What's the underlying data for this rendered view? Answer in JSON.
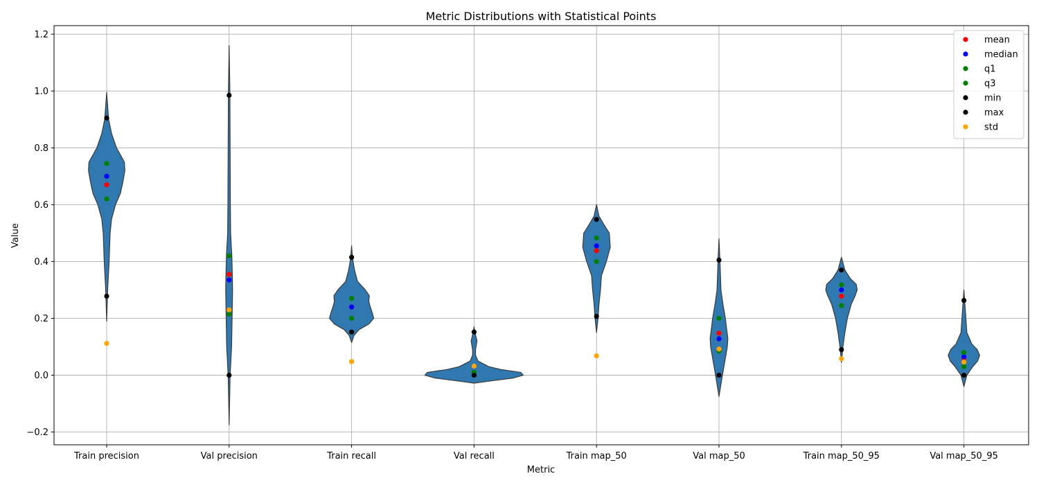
{
  "chart_data": {
    "type": "violin",
    "title": "Metric Distributions with Statistical Points",
    "xlabel": "Metric",
    "ylabel": "Value",
    "ylim": [
      -0.245,
      1.23
    ],
    "yticks": [
      -0.2,
      0.0,
      0.2,
      0.4,
      0.6,
      0.8,
      1.0,
      1.2
    ],
    "ytick_labels": [
      "−0.2",
      "0.0",
      "0.2",
      "0.4",
      "0.6",
      "0.8",
      "1.0",
      "1.2"
    ],
    "grid": true,
    "legend_position": "top-right",
    "violin_color": "#2f78b0",
    "categories": [
      "Train precision",
      "Val precision",
      "Train recall",
      "Val recall",
      "Train map_50",
      "Val map_50",
      "Train map_50_95",
      "Val map_50_95"
    ],
    "violins": [
      {
        "extent": [
          0.19,
          0.995
        ],
        "density": [
          [
            0.19,
            0.0
          ],
          [
            0.3,
            0.02
          ],
          [
            0.4,
            0.05
          ],
          [
            0.5,
            0.07
          ],
          [
            0.55,
            0.1
          ],
          [
            0.6,
            0.18
          ],
          [
            0.64,
            0.28
          ],
          [
            0.68,
            0.33
          ],
          [
            0.72,
            0.37
          ],
          [
            0.75,
            0.36
          ],
          [
            0.8,
            0.2
          ],
          [
            0.85,
            0.1
          ],
          [
            0.9,
            0.04
          ],
          [
            0.995,
            0.0
          ]
        ]
      },
      {
        "extent": [
          -0.175,
          1.16
        ],
        "density": [
          [
            -0.175,
            0.0
          ],
          [
            0.0,
            0.02
          ],
          [
            0.1,
            0.05
          ],
          [
            0.2,
            0.06
          ],
          [
            0.3,
            0.07
          ],
          [
            0.35,
            0.065
          ],
          [
            0.42,
            0.055
          ],
          [
            0.5,
            0.03
          ],
          [
            0.6,
            0.025
          ],
          [
            0.8,
            0.02
          ],
          [
            1.0,
            0.015
          ],
          [
            1.16,
            0.0
          ]
        ]
      },
      {
        "extent": [
          0.115,
          0.455
        ],
        "density": [
          [
            0.115,
            0.0
          ],
          [
            0.14,
            0.05
          ],
          [
            0.16,
            0.15
          ],
          [
            0.18,
            0.35
          ],
          [
            0.2,
            0.45
          ],
          [
            0.22,
            0.42
          ],
          [
            0.24,
            0.38
          ],
          [
            0.26,
            0.35
          ],
          [
            0.28,
            0.36
          ],
          [
            0.3,
            0.28
          ],
          [
            0.33,
            0.12
          ],
          [
            0.37,
            0.06
          ],
          [
            0.41,
            0.02
          ],
          [
            0.455,
            0.0
          ]
        ]
      },
      {
        "extent": [
          -0.028,
          0.17
        ],
        "density": [
          [
            -0.028,
            0.0
          ],
          [
            -0.02,
            0.35
          ],
          [
            -0.01,
            0.8
          ],
          [
            0.0,
            1.0
          ],
          [
            0.01,
            0.95
          ],
          [
            0.02,
            0.55
          ],
          [
            0.03,
            0.3
          ],
          [
            0.05,
            0.08
          ],
          [
            0.07,
            0.03
          ],
          [
            0.09,
            0.03
          ],
          [
            0.12,
            0.06
          ],
          [
            0.15,
            0.02
          ],
          [
            0.17,
            0.0
          ]
        ]
      },
      {
        "extent": [
          0.15,
          0.6
        ],
        "density": [
          [
            0.15,
            0.0
          ],
          [
            0.2,
            0.03
          ],
          [
            0.25,
            0.05
          ],
          [
            0.3,
            0.08
          ],
          [
            0.35,
            0.1
          ],
          [
            0.4,
            0.2
          ],
          [
            0.45,
            0.28
          ],
          [
            0.5,
            0.26
          ],
          [
            0.53,
            0.15
          ],
          [
            0.56,
            0.05
          ],
          [
            0.6,
            0.0
          ]
        ]
      },
      {
        "extent": [
          -0.075,
          0.48
        ],
        "density": [
          [
            -0.075,
            0.0
          ],
          [
            0.0,
            0.07
          ],
          [
            0.05,
            0.12
          ],
          [
            0.1,
            0.17
          ],
          [
            0.13,
            0.18
          ],
          [
            0.17,
            0.15
          ],
          [
            0.2,
            0.13
          ],
          [
            0.25,
            0.08
          ],
          [
            0.3,
            0.04
          ],
          [
            0.4,
            0.02
          ],
          [
            0.48,
            0.0
          ]
        ]
      },
      {
        "extent": [
          0.045,
          0.415
        ],
        "density": [
          [
            0.045,
            0.0
          ],
          [
            0.1,
            0.03
          ],
          [
            0.15,
            0.07
          ],
          [
            0.2,
            0.12
          ],
          [
            0.25,
            0.2
          ],
          [
            0.28,
            0.28
          ],
          [
            0.3,
            0.32
          ],
          [
            0.32,
            0.3
          ],
          [
            0.34,
            0.18
          ],
          [
            0.37,
            0.07
          ],
          [
            0.415,
            0.0
          ]
        ]
      },
      {
        "extent": [
          -0.04,
          0.3
        ],
        "density": [
          [
            -0.04,
            0.0
          ],
          [
            0.0,
            0.06
          ],
          [
            0.03,
            0.18
          ],
          [
            0.05,
            0.28
          ],
          [
            0.07,
            0.32
          ],
          [
            0.09,
            0.27
          ],
          [
            0.11,
            0.16
          ],
          [
            0.15,
            0.06
          ],
          [
            0.2,
            0.04
          ],
          [
            0.25,
            0.02
          ],
          [
            0.3,
            0.0
          ]
        ]
      }
    ],
    "stat_series": [
      {
        "name": "mean",
        "color": "#ff0000",
        "values": [
          0.67,
          0.355,
          0.24,
          0.01,
          0.438,
          0.148,
          0.278,
          0.06
        ]
      },
      {
        "name": "median",
        "color": "#0000ff",
        "values": [
          0.7,
          0.335,
          0.24,
          0.0,
          0.455,
          0.128,
          0.3,
          0.065
        ]
      },
      {
        "name": "q1",
        "color": "#008000",
        "values": [
          0.62,
          0.215,
          0.2,
          0.0,
          0.4,
          0.085,
          0.245,
          0.03
        ]
      },
      {
        "name": "q3",
        "color": "#008000",
        "values": [
          0.745,
          0.42,
          0.27,
          0.01,
          0.483,
          0.2,
          0.318,
          0.08
        ]
      },
      {
        "name": "min",
        "color": "#000000",
        "values": [
          0.278,
          0.0,
          0.152,
          0.0,
          0.207,
          0.0,
          0.09,
          0.0
        ]
      },
      {
        "name": "max",
        "color": "#000000",
        "values": [
          0.905,
          0.985,
          0.415,
          0.152,
          0.548,
          0.405,
          0.37,
          0.263
        ]
      },
      {
        "name": "std",
        "color": "#ffa500",
        "values": [
          0.112,
          0.23,
          0.048,
          0.032,
          0.068,
          0.092,
          0.058,
          0.046
        ]
      }
    ]
  }
}
